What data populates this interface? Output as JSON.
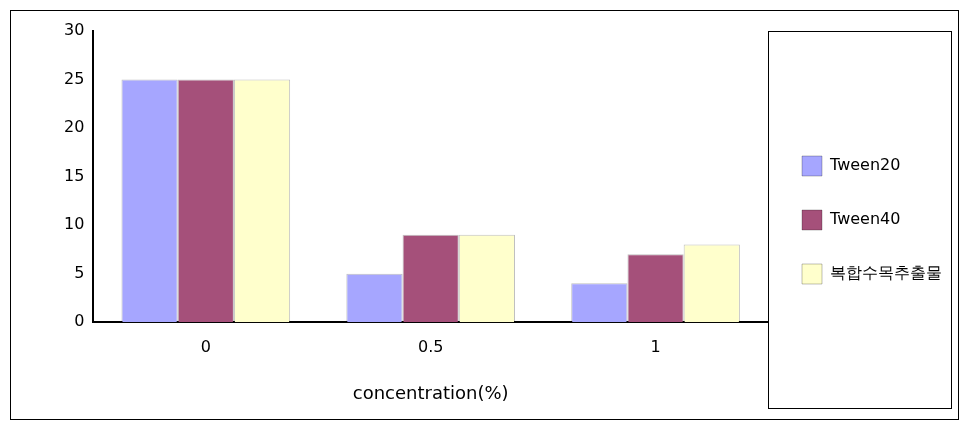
{
  "chart_data": {
    "type": "bar",
    "categories": [
      "0",
      "0.5",
      "1"
    ],
    "series": [
      {
        "name": "Tween20",
        "color": "#a6a6ff",
        "values": [
          25,
          5,
          4
        ]
      },
      {
        "name": "Tween40",
        "color": "#a5507a",
        "values": [
          25,
          9,
          7
        ]
      },
      {
        "name": "복합수목추출물",
        "color": "#ffffcc",
        "values": [
          25,
          9,
          8
        ]
      }
    ],
    "x_label": "concentration(%)",
    "ylim": [
      0,
      30
    ],
    "yticks": [
      0,
      5,
      10,
      15,
      20,
      25,
      30
    ],
    "grid": false,
    "legend": "right"
  }
}
